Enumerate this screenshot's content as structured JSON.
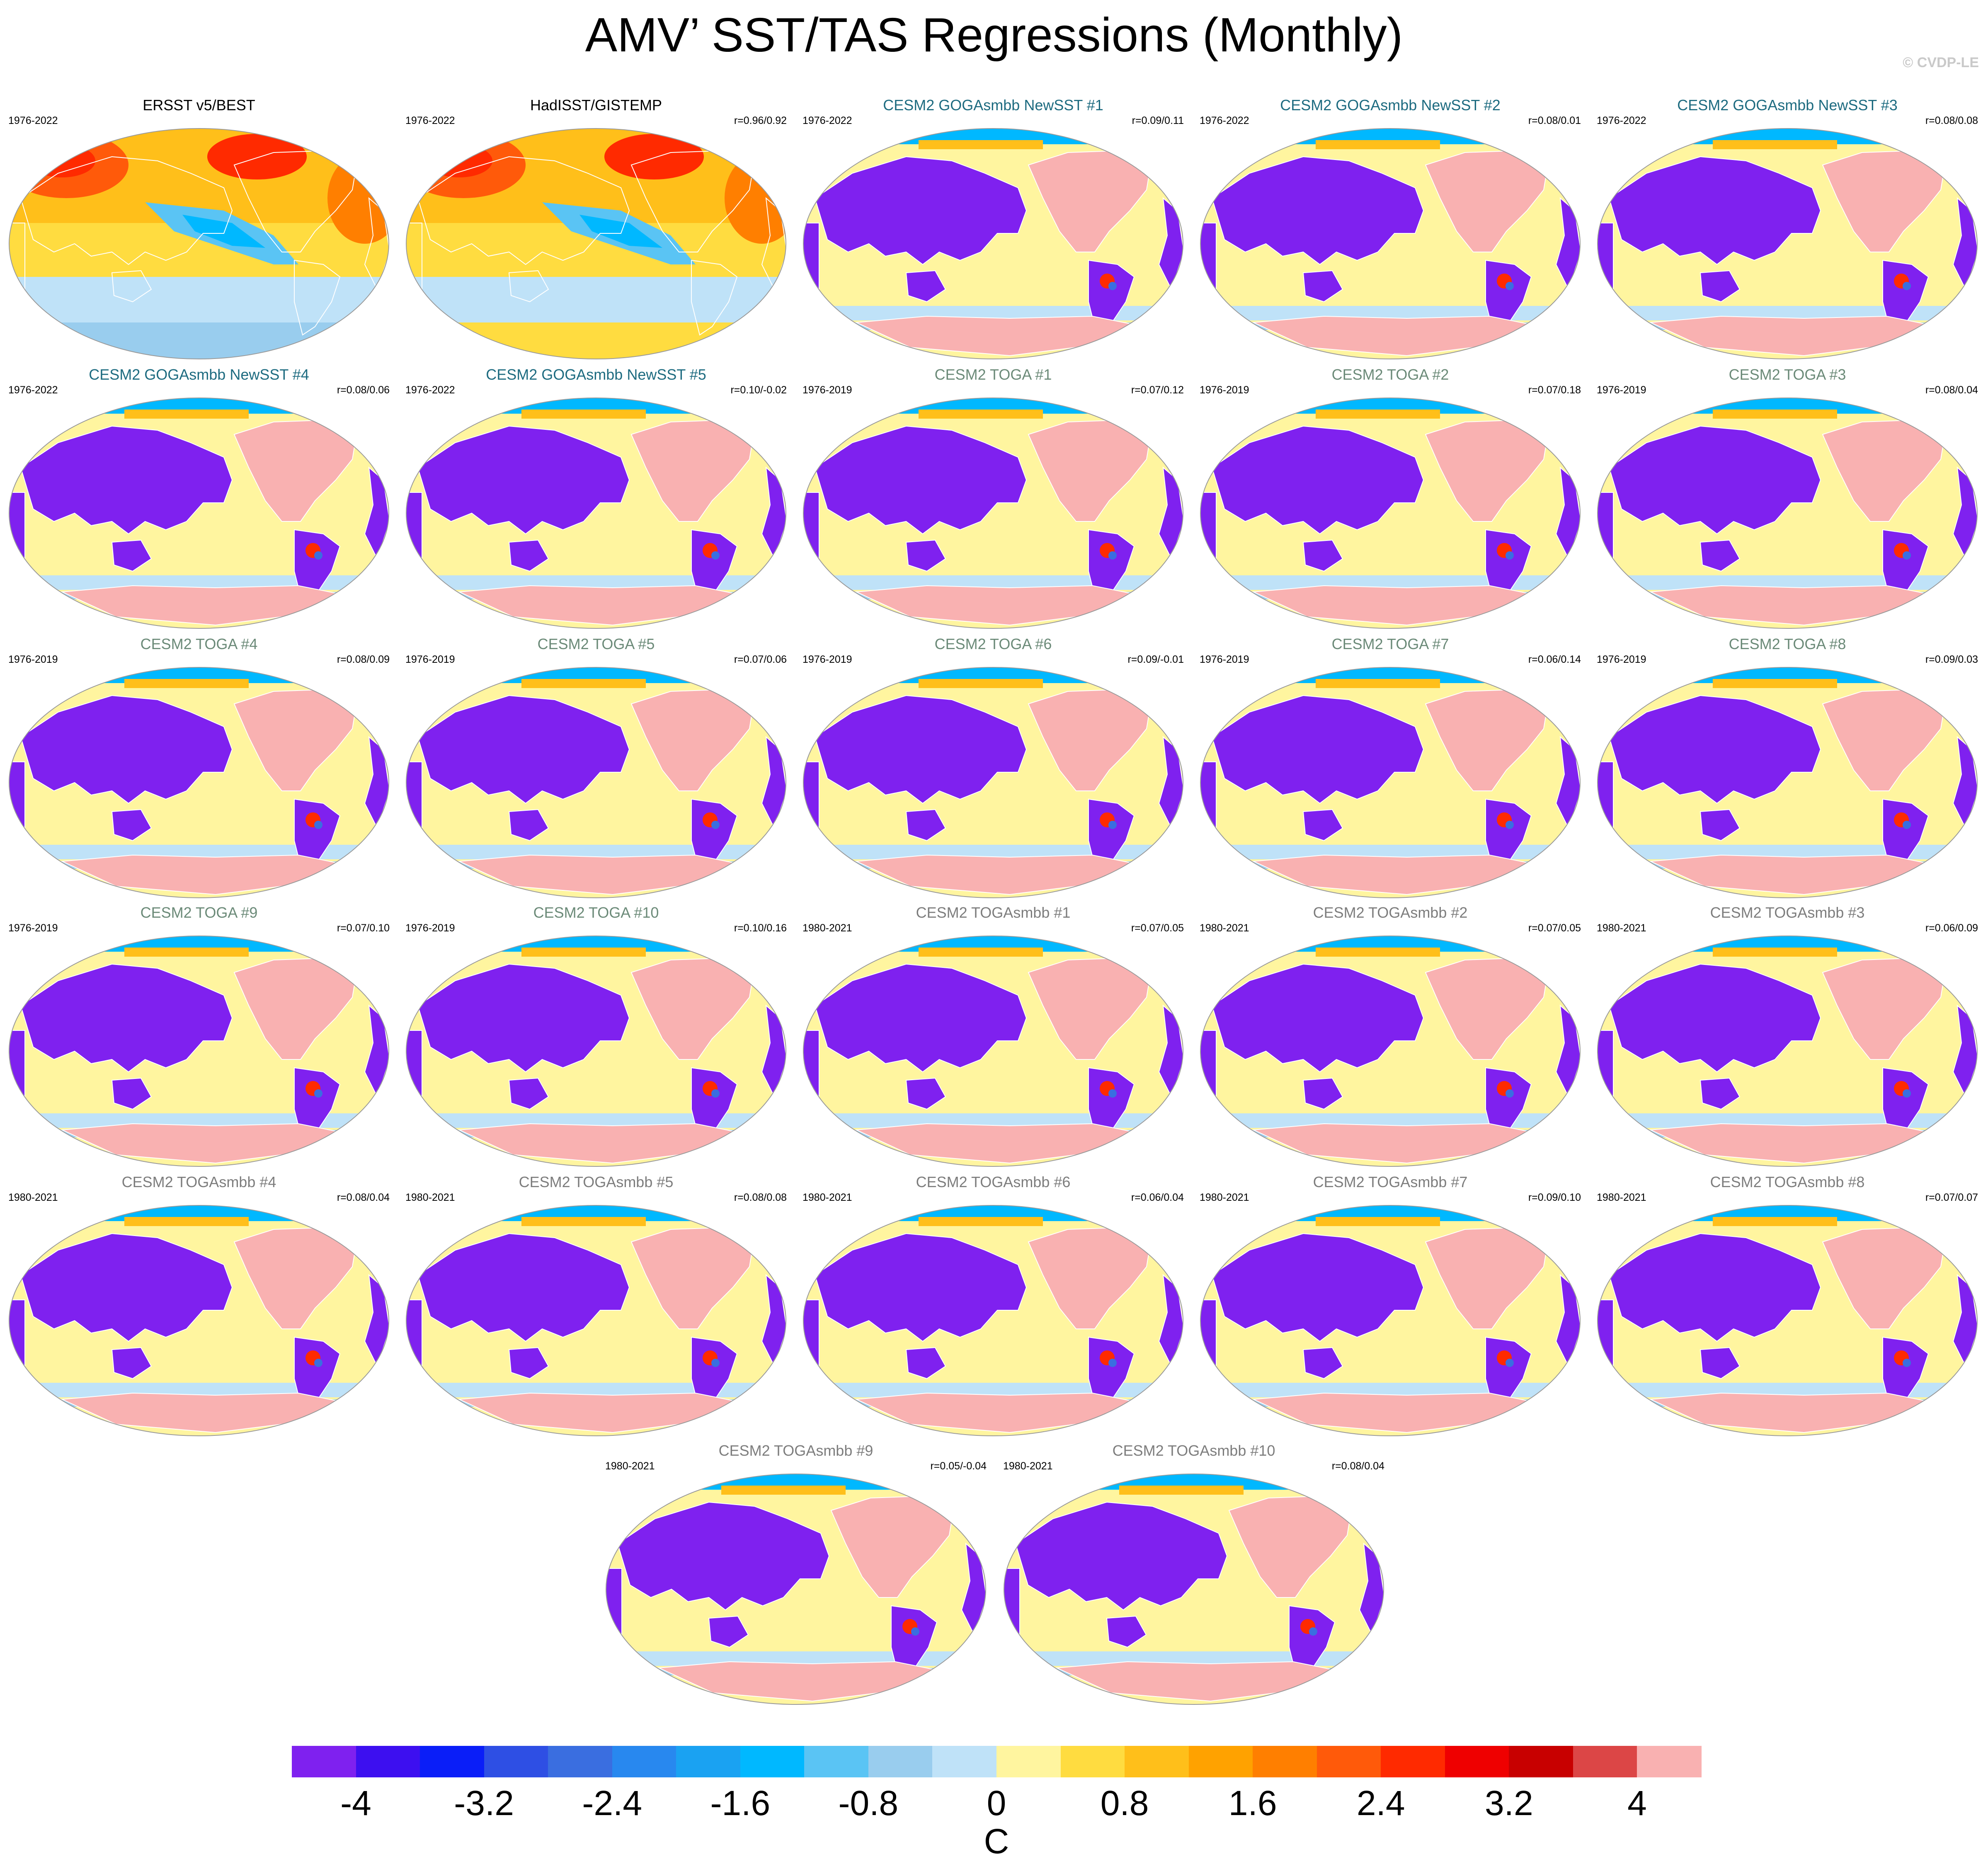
{
  "title": "AMV’ SST/TAS Regressions (Monthly)",
  "watermark": "© CVDP-LE",
  "colors": {
    "obs_title": "#000000",
    "goga_title": "#1d6b80",
    "toga_title": "#6b8a78",
    "togasmbb_title": "#7d7d7d",
    "land_panel_bg": "#fff59f",
    "cold_land": "#7f21ef",
    "warm_land": "#f9b1b1",
    "coast": "#ffffff"
  },
  "panels": [
    {
      "title": "ERSST v5/BEST",
      "period": "1976-2022",
      "corr": "",
      "group": "obs",
      "style": "obs1"
    },
    {
      "title": "HadISST/GISTEMP",
      "period": "1976-2022",
      "corr": "r=0.96/0.92",
      "group": "obs",
      "style": "obs2"
    },
    {
      "title": "CESM2 GOGAsmbb NewSST #1",
      "period": "1976-2022",
      "corr": "r=0.09/0.11",
      "group": "goga",
      "style": "model"
    },
    {
      "title": "CESM2 GOGAsmbb NewSST #2",
      "period": "1976-2022",
      "corr": "r=0.08/0.01",
      "group": "goga",
      "style": "model"
    },
    {
      "title": "CESM2 GOGAsmbb NewSST #3",
      "period": "1976-2022",
      "corr": "r=0.08/0.08",
      "group": "goga",
      "style": "model"
    },
    {
      "title": "CESM2 GOGAsmbb NewSST #4",
      "period": "1976-2022",
      "corr": "r=0.08/0.06",
      "group": "goga",
      "style": "model"
    },
    {
      "title": "CESM2 GOGAsmbb NewSST #5",
      "period": "1976-2022",
      "corr": "r=0.10/-0.02",
      "group": "goga",
      "style": "model"
    },
    {
      "title": "CESM2 TOGA #1",
      "period": "1976-2019",
      "corr": "r=0.07/0.12",
      "group": "toga",
      "style": "model"
    },
    {
      "title": "CESM2 TOGA #2",
      "period": "1976-2019",
      "corr": "r=0.07/0.18",
      "group": "toga",
      "style": "model"
    },
    {
      "title": "CESM2 TOGA #3",
      "period": "1976-2019",
      "corr": "r=0.08/0.04",
      "group": "toga",
      "style": "model"
    },
    {
      "title": "CESM2 TOGA #4",
      "period": "1976-2019",
      "corr": "r=0.08/0.09",
      "group": "toga",
      "style": "model"
    },
    {
      "title": "CESM2 TOGA #5",
      "period": "1976-2019",
      "corr": "r=0.07/0.06",
      "group": "toga",
      "style": "model"
    },
    {
      "title": "CESM2 TOGA #6",
      "period": "1976-2019",
      "corr": "r=0.09/-0.01",
      "group": "toga",
      "style": "model"
    },
    {
      "title": "CESM2 TOGA #7",
      "period": "1976-2019",
      "corr": "r=0.06/0.14",
      "group": "toga",
      "style": "model"
    },
    {
      "title": "CESM2 TOGA #8",
      "period": "1976-2019",
      "corr": "r=0.09/0.03",
      "group": "toga",
      "style": "model"
    },
    {
      "title": "CESM2 TOGA #9",
      "period": "1976-2019",
      "corr": "r=0.07/0.10",
      "group": "toga",
      "style": "model"
    },
    {
      "title": "CESM2 TOGA #10",
      "period": "1976-2019",
      "corr": "r=0.10/0.16",
      "group": "toga",
      "style": "model"
    },
    {
      "title": "CESM2 TOGAsmbb #1",
      "period": "1980-2021",
      "corr": "r=0.07/0.05",
      "group": "togasmbb",
      "style": "model"
    },
    {
      "title": "CESM2 TOGAsmbb #2",
      "period": "1980-2021",
      "corr": "r=0.07/0.05",
      "group": "togasmbb",
      "style": "model"
    },
    {
      "title": "CESM2 TOGAsmbb #3",
      "period": "1980-2021",
      "corr": "r=0.06/0.09",
      "group": "togasmbb",
      "style": "model"
    },
    {
      "title": "CESM2 TOGAsmbb #4",
      "period": "1980-2021",
      "corr": "r=0.08/0.04",
      "group": "togasmbb",
      "style": "model"
    },
    {
      "title": "CESM2 TOGAsmbb #5",
      "period": "1980-2021",
      "corr": "r=0.08/0.08",
      "group": "togasmbb",
      "style": "model"
    },
    {
      "title": "CESM2 TOGAsmbb #6",
      "period": "1980-2021",
      "corr": "r=0.06/0.04",
      "group": "togasmbb",
      "style": "model"
    },
    {
      "title": "CESM2 TOGAsmbb #7",
      "period": "1980-2021",
      "corr": "r=0.09/0.10",
      "group": "togasmbb",
      "style": "model"
    },
    {
      "title": "CESM2 TOGAsmbb #8",
      "period": "1980-2021",
      "corr": "r=0.07/0.07",
      "group": "togasmbb",
      "style": "model"
    },
    {
      "title": "CESM2 TOGAsmbb #9",
      "period": "1980-2021",
      "corr": "r=0.05/-0.04",
      "group": "togasmbb",
      "style": "model"
    },
    {
      "title": "CESM2 TOGAsmbb #10",
      "period": "1980-2021",
      "corr": "r=0.08/0.04",
      "group": "togasmbb",
      "style": "model"
    }
  ],
  "colorbar": {
    "colors": [
      "#7f21ef",
      "#3d0ff0",
      "#0a1ef8",
      "#2e4fe4",
      "#3a6ee0",
      "#2888ef",
      "#1aa2f2",
      "#00b8ff",
      "#5ac4f4",
      "#99cdee",
      "#bfe2f8",
      "#fff59f",
      "#ffdc40",
      "#ffbf1a",
      "#ffa200",
      "#ff7f00",
      "#ff5a0a",
      "#ff2a00",
      "#ef0000",
      "#c80000",
      "#dc4646",
      "#f9b1b1"
    ],
    "labels": [
      "-4",
      "-3.2",
      "-2.4",
      "-1.6",
      "-0.8",
      "0",
      "0.8",
      "1.6",
      "2.4",
      "3.2",
      "4"
    ],
    "units": "C"
  }
}
